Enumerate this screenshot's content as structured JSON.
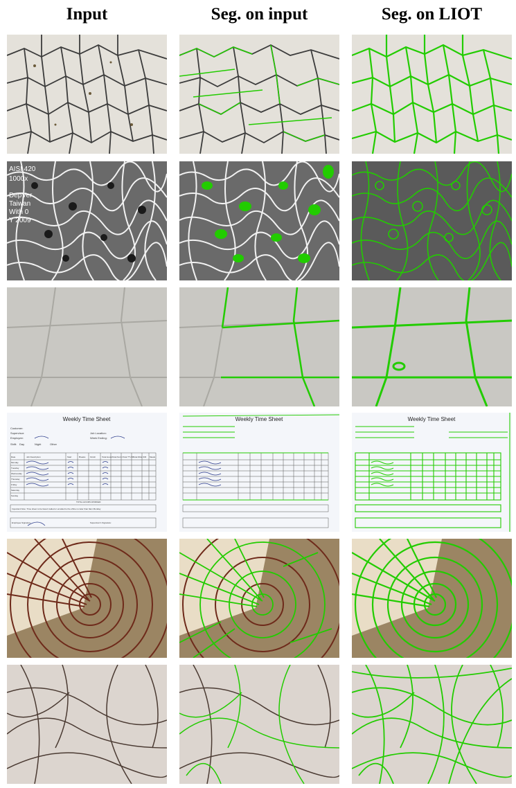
{
  "headers": [
    "Input",
    "Seg. on input",
    "Seg. on LIOT"
  ],
  "rows": [
    {
      "id": "grains"
    },
    {
      "id": "sem-micrograph",
      "overlay_text": [
        "AISI 420",
        "1000x",
        "DepVer",
        "Taiwan",
        "With 0",
        "Y 2009"
      ]
    },
    {
      "id": "ceiling-tiles"
    },
    {
      "id": "time-sheet",
      "sheet": {
        "title": "Weekly Time Sheet",
        "customer": "Customer:",
        "supervisor": "Supervisor:",
        "employee": "Employee:",
        "job_location": "Job Location:",
        "week_ending": "Week Ending:",
        "shift": "Shift:",
        "day": "Day",
        "night": "Night",
        "other": "Other",
        "columns": [
          "Date",
          "Job Description",
          "Start",
          "Breaks",
          "Finish",
          "Total Hours",
          "Total Norm",
          "Total T*1.50",
          "Total Dble",
          "O/R",
          "Meals"
        ],
        "days": [
          "Monday",
          "Tuesday",
          "Wednesday",
          "Thursday",
          "Friday",
          "Saturday",
          "Sunday"
        ],
        "total_hours": "TOTAL HOURS WORKED:",
        "note": "Important Note: Time sheet to be faxed mailed or emailed to the office no later than 9am Monday",
        "employee_signature": "Employee Signature:",
        "supervisor_signature": "Supervisor's Signature:"
      }
    },
    {
      "id": "wood-rings"
    },
    {
      "id": "hair"
    }
  ],
  "colors": {
    "segmentation": "#22cc00",
    "background": "#ffffff"
  }
}
